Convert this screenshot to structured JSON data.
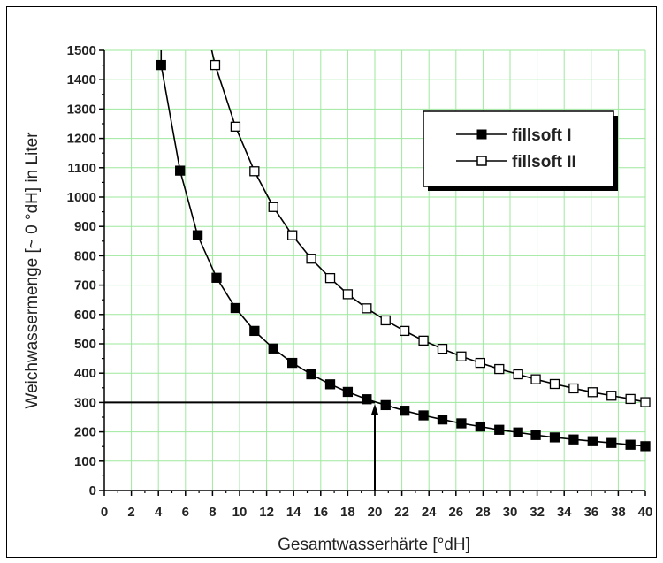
{
  "chart_data": {
    "type": "line",
    "xlabel": "Gesamtwasserhärte [°dH]",
    "ylabel": "Weichwassermenge [~ 0 °dH] in Liter",
    "xlim": [
      0,
      40
    ],
    "ylim": [
      0,
      1500
    ],
    "x_ticks": [
      "0",
      "2",
      "4",
      "6",
      "8",
      "10",
      "12",
      "14",
      "16",
      "18",
      "20",
      "22",
      "24",
      "26",
      "28",
      "30",
      "32",
      "34",
      "36",
      "38",
      "40"
    ],
    "y_ticks": [
      "0",
      "100",
      "200",
      "300",
      "400",
      "500",
      "600",
      "700",
      "800",
      "900",
      "1000",
      "1100",
      "1200",
      "1300",
      "1400",
      "1500"
    ],
    "grid": true,
    "legend_position": "top-right",
    "series": [
      {
        "name": "fillsoft I",
        "marker": "filled-square",
        "color": "#000000",
        "x": [
          4.2,
          5.6,
          6.9,
          8.3,
          9.7,
          11.1,
          12.5,
          13.9,
          15.3,
          16.7,
          18.0,
          19.4,
          20.8,
          22.2,
          23.6,
          25.0,
          26.4,
          27.8,
          29.2,
          30.6,
          31.9,
          33.3,
          34.7,
          36.1,
          37.5,
          38.9,
          40.2
        ],
        "y": [
          1450,
          1090,
          870,
          725,
          622,
          544,
          484,
          435,
          396,
          362,
          336,
          311,
          291,
          272,
          256,
          242,
          229,
          218,
          207,
          198,
          189,
          181,
          174,
          168,
          162,
          156,
          151
        ]
      },
      {
        "name": "fillsoft II",
        "marker": "open-square",
        "color": "#000000",
        "x": [
          8.2,
          9.7,
          11.1,
          12.5,
          13.9,
          15.3,
          16.7,
          18.0,
          19.4,
          20.8,
          22.2,
          23.6,
          25.0,
          26.4,
          27.8,
          29.2,
          30.6,
          31.9,
          33.3,
          34.7,
          36.1,
          37.5,
          38.9,
          40.2
        ],
        "y": [
          1450,
          1240,
          1088,
          966,
          870,
          790,
          724,
          669,
          621,
          580,
          544,
          511,
          483,
          457,
          435,
          414,
          396,
          379,
          363,
          348,
          335,
          323,
          312,
          301
        ]
      }
    ],
    "annotations": [
      {
        "type": "reference-line",
        "from": [
          0,
          300
        ],
        "to": [
          20,
          300
        ],
        "color": "#000000"
      },
      {
        "type": "arrow",
        "from": [
          20,
          0
        ],
        "to": [
          20,
          295
        ],
        "color": "#000000"
      }
    ]
  },
  "colors": {
    "grid": "#9ee89e",
    "background": "#ffffff",
    "axis": "#000000",
    "legend_shadow": "#000000"
  }
}
